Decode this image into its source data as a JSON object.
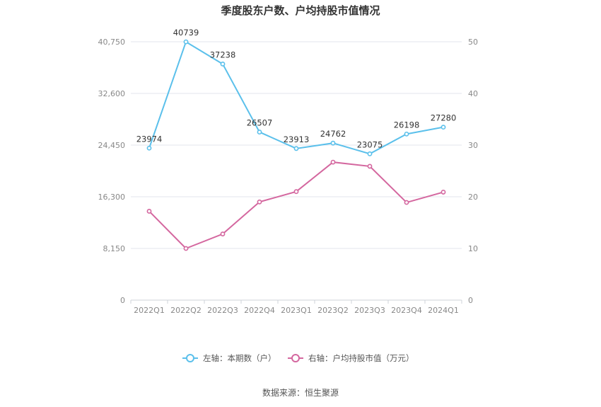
{
  "title": "季度股东户数、户均持股市值情况",
  "source": "数据来源：恒生聚源",
  "chart_data": {
    "type": "line",
    "categories": [
      "2022Q1",
      "2022Q2",
      "2022Q3",
      "2022Q4",
      "2023Q1",
      "2023Q2",
      "2023Q3",
      "2023Q4",
      "2024Q1"
    ],
    "y_left": {
      "min": 0,
      "max": 40750,
      "ticks": [
        "0",
        "8,150",
        "16,300",
        "24,450",
        "32,600",
        "40,750"
      ]
    },
    "y_right": {
      "min": 0,
      "max": 50,
      "ticks": [
        "0",
        "10",
        "20",
        "30",
        "40",
        "50"
      ]
    },
    "grid": true,
    "legend_position": "bottom",
    "series": [
      {
        "name": "左轴：本期数（户）",
        "axis": "left",
        "color": "#5bc0eb",
        "values": [
          23974,
          40739,
          37238,
          26507,
          23913,
          24762,
          23075,
          26198,
          27280
        ],
        "labels": [
          "23974",
          "40739",
          "37238",
          "26507",
          "23913",
          "24762",
          "23075",
          "26198",
          "27280"
        ]
      },
      {
        "name": "右轴：户均持股市值（万元）",
        "axis": "right",
        "color": "#d4679f",
        "values": [
          17.2,
          10.0,
          12.8,
          19.0,
          21.0,
          26.7,
          25.9,
          18.9,
          20.9
        ]
      }
    ]
  }
}
